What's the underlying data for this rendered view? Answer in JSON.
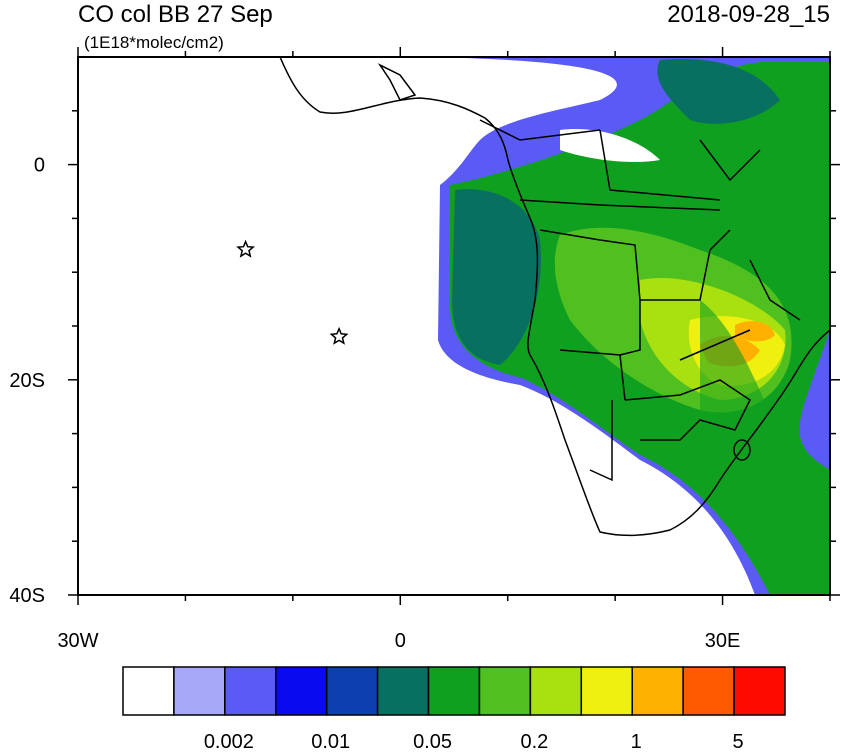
{
  "title": "CO col BB 27 Sep",
  "subtitle": "(1E18*molec/cm2)",
  "timestamp": "2018-09-28_15",
  "map": {
    "lon_range": [
      -30,
      40
    ],
    "lat_range": [
      -40,
      10
    ],
    "lat_ticks": [
      0,
      {
        "value": -20,
        "label": "20S"
      },
      {
        "value": -40,
        "label": "40S"
      }
    ],
    "lon_ticks": [
      {
        "value": -30,
        "label": "30W"
      },
      0,
      {
        "value": 30,
        "label": "30E"
      }
    ],
    "lat_minor_ticks": [
      5,
      -5,
      -10,
      -15,
      -25,
      -30,
      -35
    ],
    "lon_minor_ticks": [
      -20,
      -10,
      10,
      20,
      40
    ]
  },
  "markers": [
    {
      "lon": -14.4,
      "lat": -7.9
    },
    {
      "lon": -5.7,
      "lat": -16
    }
  ],
  "colorbar": {
    "colors": [
      "#ffffff",
      "#a8a8f8",
      "#5a5af5",
      "#0a0af0",
      "#0d3fb0",
      "#087060",
      "#10a020",
      "#50c020",
      "#a8e010",
      "#f0f010",
      "#ffb000",
      "#ff5a00",
      "#ff0a00"
    ],
    "labels": [
      0.002,
      0.01,
      0.05,
      0.2,
      1,
      5
    ]
  }
}
